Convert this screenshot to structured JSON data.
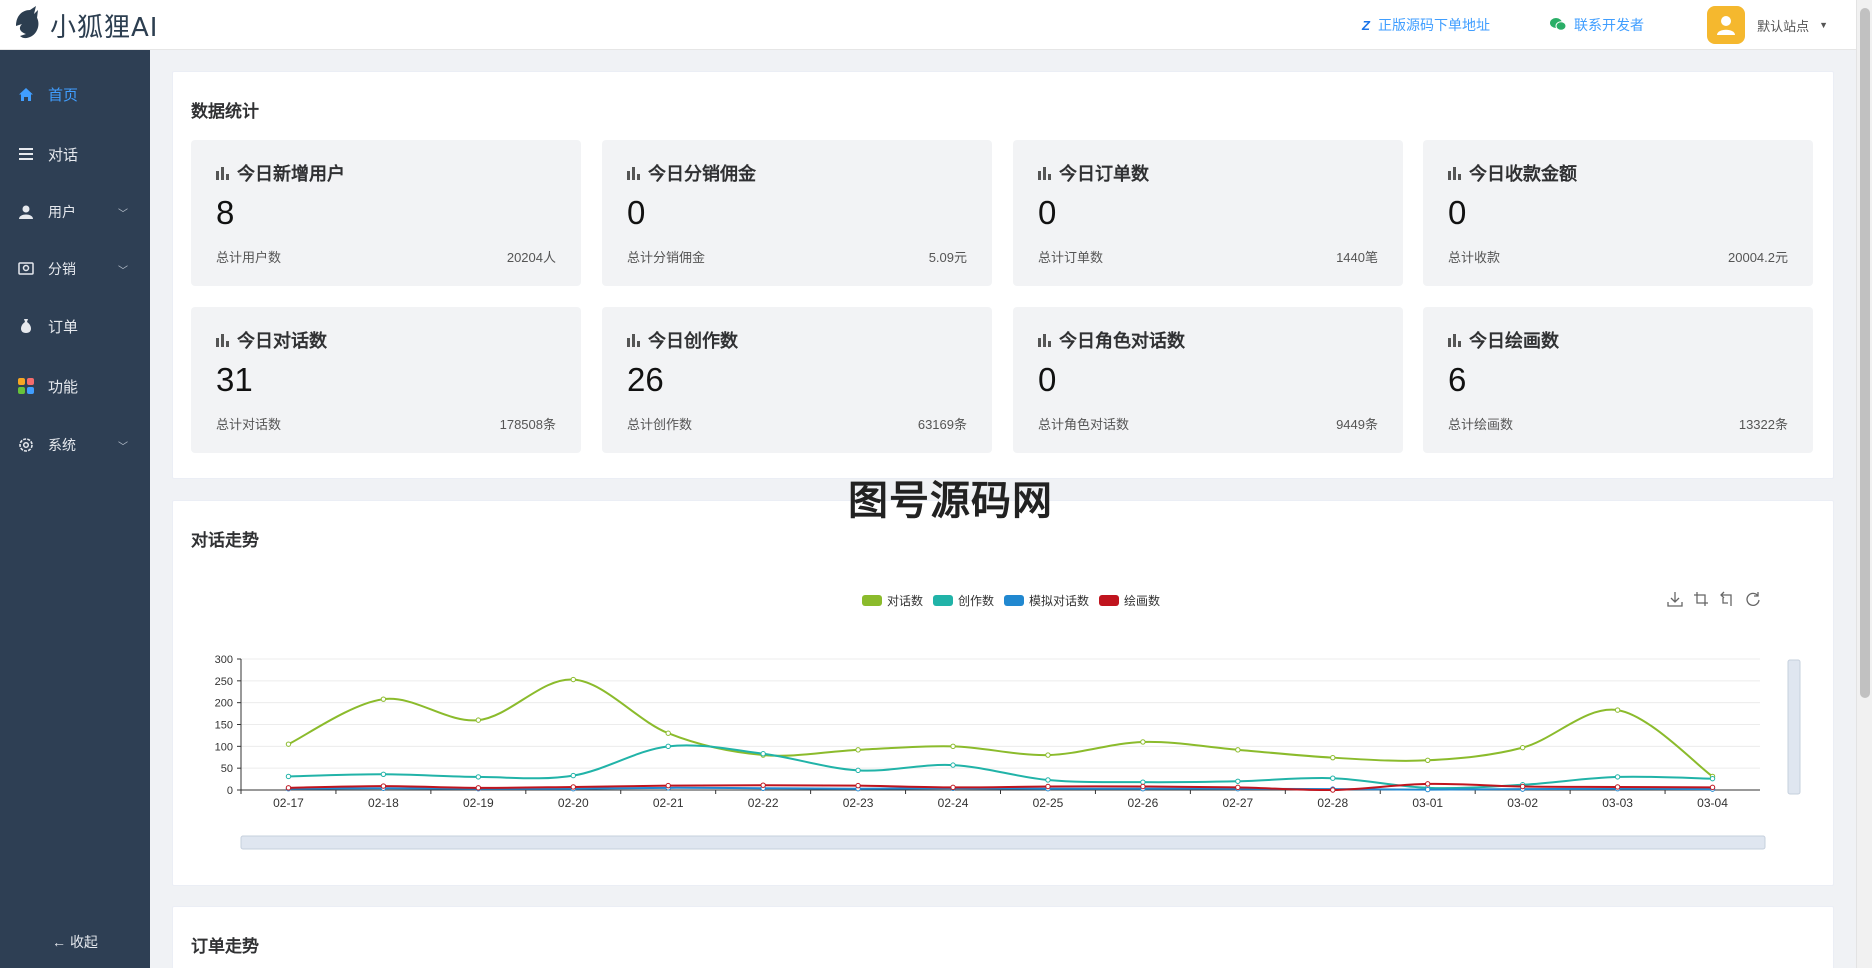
{
  "header": {
    "app_name": "小狐狸AI",
    "link_source": "正版源码下单地址",
    "link_contact": "联系开发者",
    "user_name": "默认站点"
  },
  "sidebar": {
    "items": [
      {
        "label": "首页",
        "icon": "home-icon",
        "active": true,
        "has_children": false
      },
      {
        "label": "对话",
        "icon": "list-icon",
        "active": false,
        "has_children": false
      },
      {
        "label": "用户",
        "icon": "user-icon",
        "active": false,
        "has_children": true
      },
      {
        "label": "分销",
        "icon": "distribution-icon",
        "active": false,
        "has_children": true
      },
      {
        "label": "订单",
        "icon": "money-bag-icon",
        "active": false,
        "has_children": false
      },
      {
        "label": "功能",
        "icon": "apps-icon",
        "active": false,
        "has_children": false
      },
      {
        "label": "系统",
        "icon": "settings-icon",
        "active": false,
        "has_children": true
      }
    ],
    "collapse_label": "收起"
  },
  "stats_panel": {
    "title": "数据统计",
    "cards": [
      {
        "title": "今日新增用户",
        "value": "8",
        "foot_label": "总计用户数",
        "foot_value": "20204人"
      },
      {
        "title": "今日分销佣金",
        "value": "0",
        "foot_label": "总计分销佣金",
        "foot_value": "5.09元"
      },
      {
        "title": "今日订单数",
        "value": "0",
        "foot_label": "总计订单数",
        "foot_value": "1440笔"
      },
      {
        "title": "今日收款金额",
        "value": "0",
        "foot_label": "总计收款",
        "foot_value": "20004.2元"
      },
      {
        "title": "今日对话数",
        "value": "31",
        "foot_label": "总计对话数",
        "foot_value": "178508条"
      },
      {
        "title": "今日创作数",
        "value": "26",
        "foot_label": "总计创作数",
        "foot_value": "63169条"
      },
      {
        "title": "今日角色对话数",
        "value": "0",
        "foot_label": "总计角色对话数",
        "foot_value": "9449条"
      },
      {
        "title": "今日绘画数",
        "value": "6",
        "foot_label": "总计绘画数",
        "foot_value": "13322条"
      }
    ]
  },
  "watermark": "图号源码网",
  "trend_panel": {
    "title": "对话走势"
  },
  "order_panel": {
    "title": "订单走势"
  },
  "chart_data": {
    "type": "line",
    "title": "",
    "xlabel": "",
    "ylabel": "",
    "ylim": [
      0,
      300
    ],
    "yticks": [
      "300",
      "250",
      "200",
      "150",
      "100",
      "50",
      "0"
    ],
    "categories": [
      "02-17",
      "02-18",
      "02-19",
      "02-20",
      "02-21",
      "02-22",
      "02-23",
      "02-24",
      "02-25",
      "02-26",
      "02-27",
      "02-28",
      "03-01",
      "03-02",
      "03-03",
      "03-04"
    ],
    "series": [
      {
        "name": "对话数",
        "color": "#8bbb2c",
        "values": [
          105,
          208,
          160,
          253,
          130,
          80,
          92,
          100,
          80,
          110,
          92,
          74,
          68,
          97,
          183,
          31
        ]
      },
      {
        "name": "创作数",
        "color": "#21b3a8",
        "values": [
          31,
          36,
          30,
          33,
          100,
          83,
          45,
          57,
          23,
          18,
          20,
          27,
          5,
          12,
          30,
          26
        ]
      },
      {
        "name": "模拟对话数",
        "color": "#2188d0",
        "values": [
          3,
          4,
          3,
          3,
          5,
          4,
          3,
          4,
          3,
          3,
          3,
          2,
          1,
          2,
          3,
          2
        ]
      },
      {
        "name": "绘画数",
        "color": "#c0141e",
        "values": [
          5,
          9,
          5,
          7,
          10,
          11,
          10,
          6,
          8,
          8,
          6,
          0,
          14,
          8,
          7,
          6
        ]
      }
    ],
    "legend_position": "top-center",
    "grid": true,
    "datazoom": true
  }
}
